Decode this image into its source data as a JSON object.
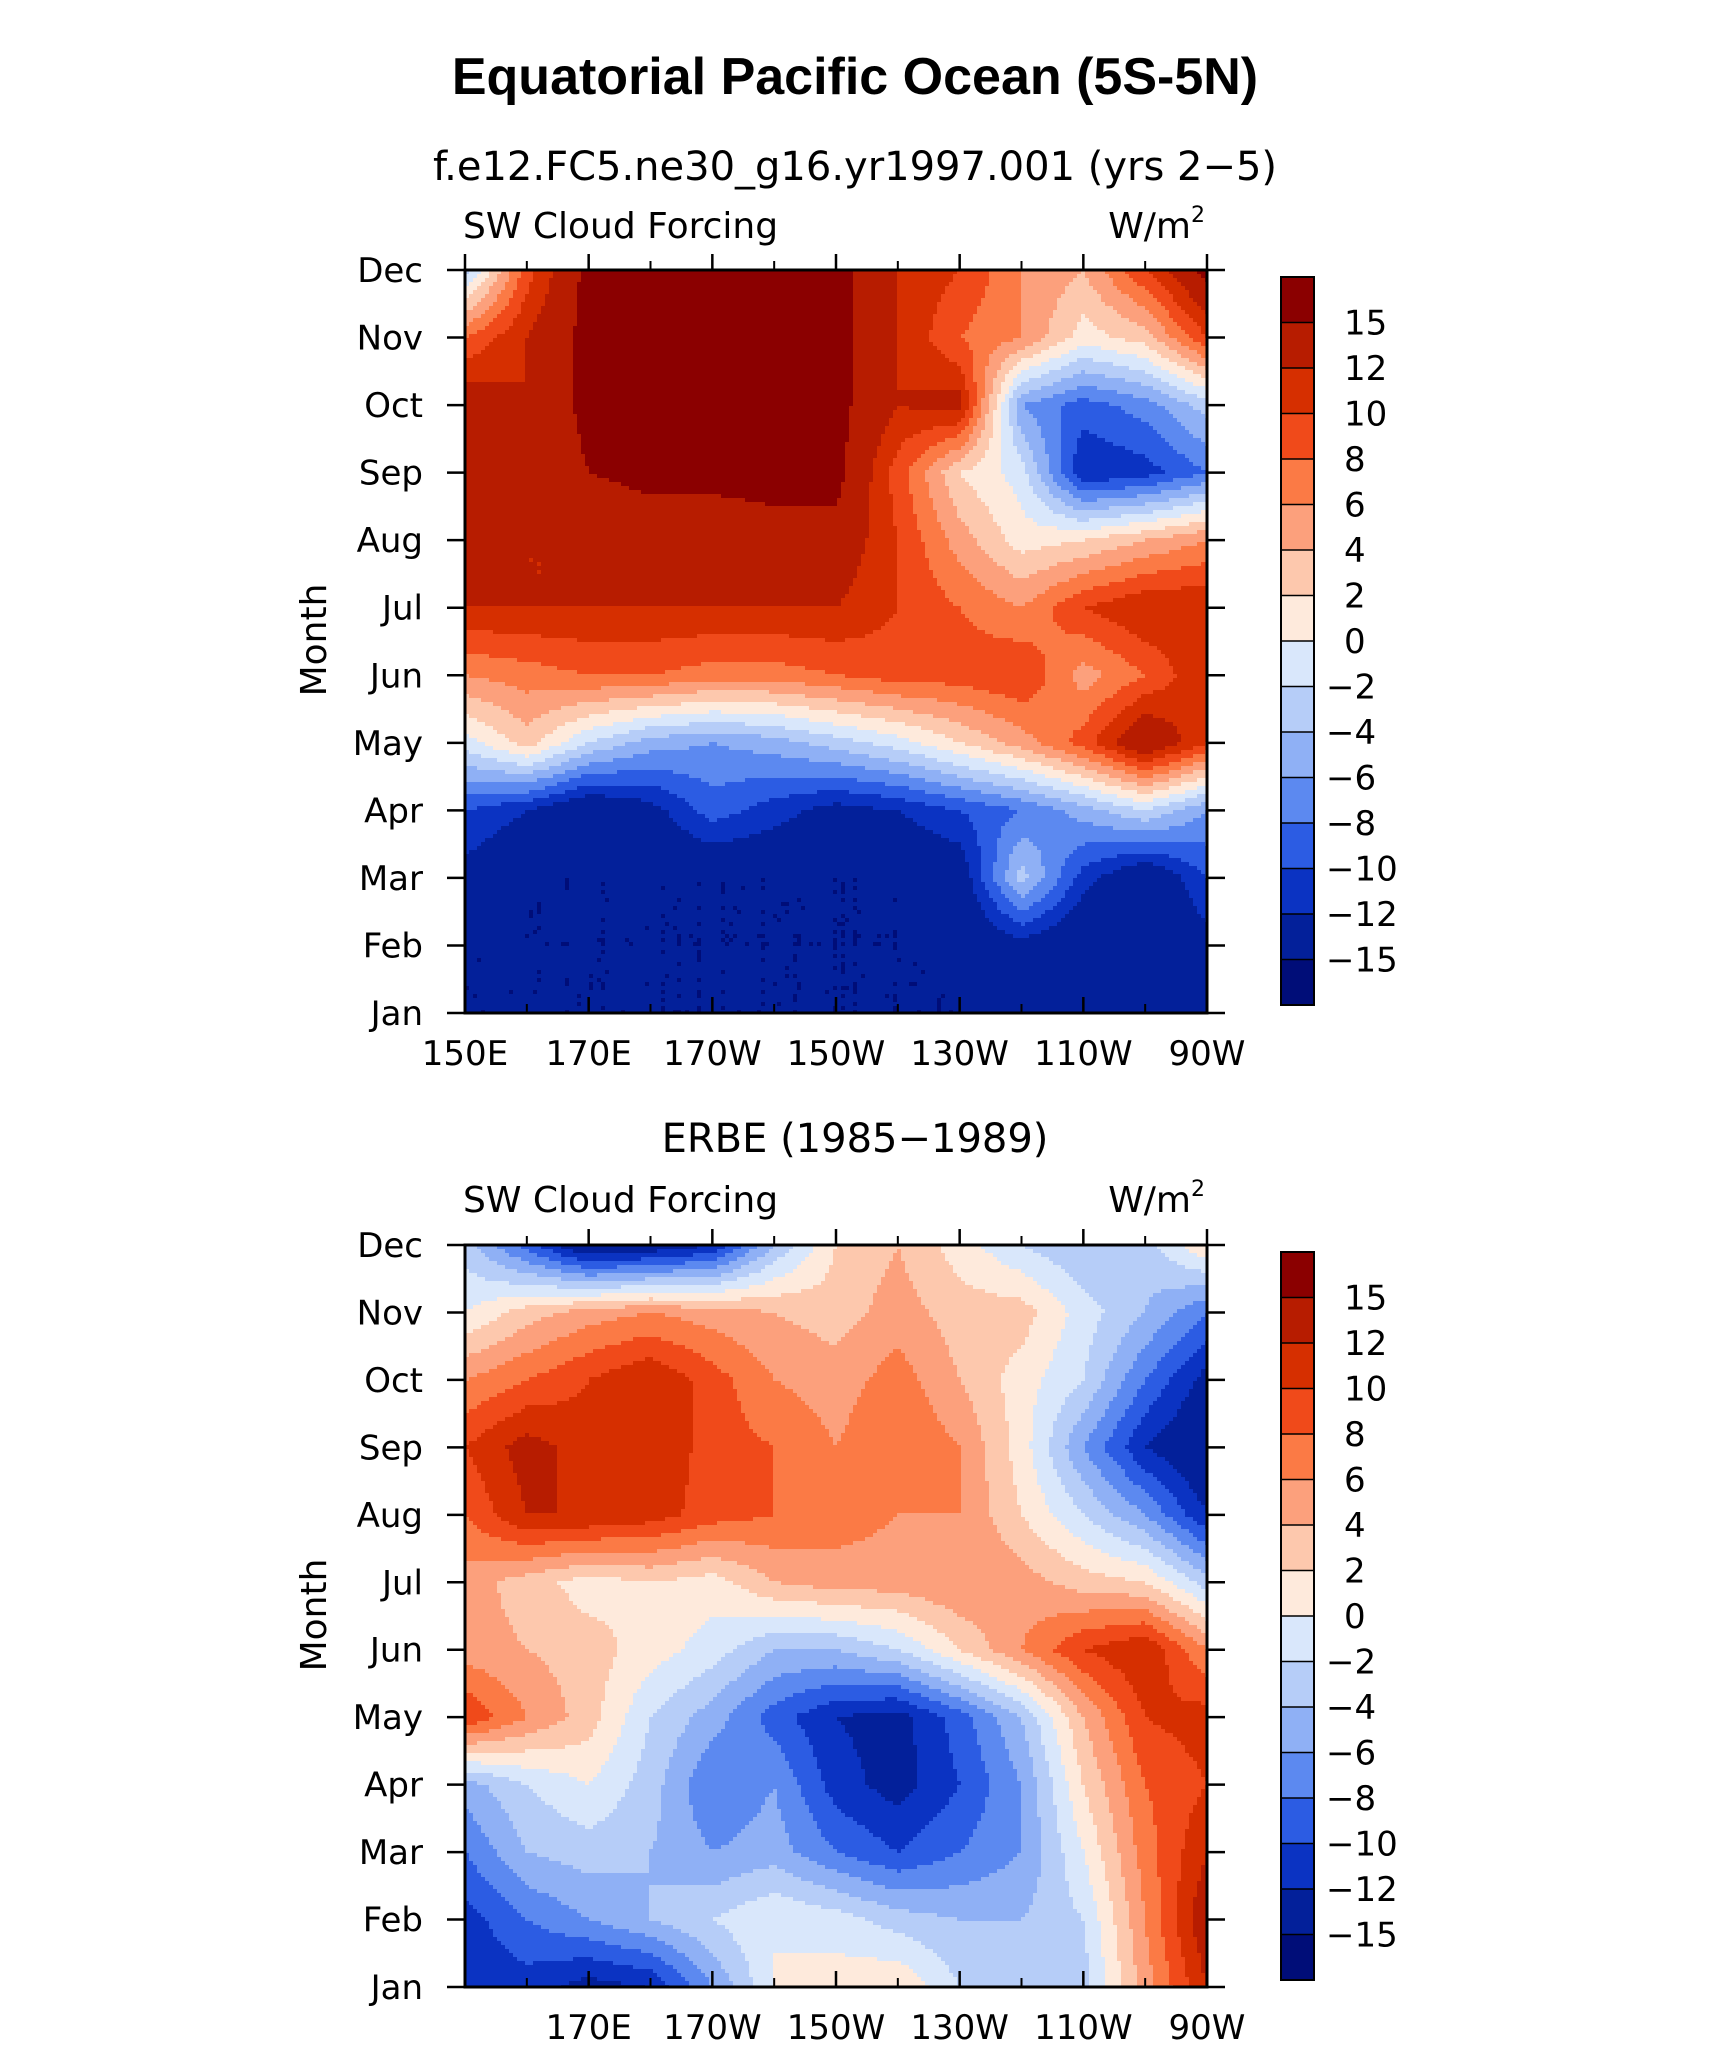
{
  "figure": {
    "title": "Equatorial Pacific Ocean (5S-5N)",
    "units_superscript": "2"
  },
  "colorscale": {
    "levels": [
      "15",
      "12",
      "10",
      "8",
      "6",
      "4",
      "2",
      "0",
      "−2",
      "−4",
      "−6",
      "−8",
      "−10",
      "−12",
      "−15"
    ],
    "level_values": [
      15,
      12,
      10,
      8,
      6,
      4,
      2,
      0,
      -2,
      -4,
      -6,
      -8,
      -10,
      -12,
      -15
    ],
    "colors": [
      "#8b0000",
      "#b71c00",
      "#d62f00",
      "#f04a1a",
      "#fb7a45",
      "#fca07c",
      "#fdc8ad",
      "#feeadc",
      "#d9e7fb",
      "#b6cdf8",
      "#8fb0f5",
      "#5c89f0",
      "#2c5ce3",
      "#0b33c2",
      "#03209a",
      "#000d78"
    ]
  },
  "chart_data": [
    {
      "type": "heatmap",
      "title": "f.e12.FC5.ne30_g16.yr1997.001 (yrs 2−5)",
      "left_label": "SW Cloud Forcing",
      "right_label": "W/m",
      "ylabel": "Month",
      "x_tick_labels": [
        "150E",
        "170E",
        "170W",
        "150W",
        "130W",
        "110W",
        "90W"
      ],
      "x_tick_positions": [
        150,
        170,
        190,
        210,
        230,
        250,
        270
      ],
      "y_tick_labels": [
        "Jan",
        "Feb",
        "Mar",
        "Apr",
        "May",
        "Jun",
        "Jul",
        "Aug",
        "Sep",
        "Oct",
        "Nov",
        "Dec"
      ],
      "xlim": [
        150,
        270
      ],
      "ylim": [
        1,
        12
      ],
      "longitudes": [
        150,
        160,
        170,
        180,
        190,
        200,
        210,
        220,
        230,
        240,
        250,
        260,
        270
      ],
      "z": [
        [
          -15,
          -15,
          -15,
          -15,
          -15,
          -15,
          -15,
          -15,
          -15,
          -14,
          -15,
          -14,
          -13
        ],
        [
          -15,
          -15,
          -15,
          -15,
          -15,
          -15,
          -15,
          -15,
          -15,
          -13,
          -15,
          -15,
          -13
        ],
        [
          -13,
          -15,
          -15,
          -15,
          -15,
          -15,
          -15,
          -15,
          -14,
          -3,
          -11,
          -15,
          -10
        ],
        [
          -10,
          -12,
          -15,
          -13,
          -9,
          -11,
          -13,
          -12,
          -10,
          -8,
          -5,
          -2,
          -6
        ],
        [
          -1,
          3,
          -2,
          -5,
          -6,
          -5,
          -3,
          -1,
          2,
          5,
          9,
          15,
          10
        ],
        [
          6,
          7,
          8,
          8,
          7,
          7,
          8,
          9,
          9,
          10,
          5,
          8,
          12
        ],
        [
          12,
          12,
          12,
          12,
          12,
          12,
          12,
          10,
          8,
          6,
          10,
          12,
          12
        ],
        [
          14,
          12,
          12,
          13,
          13,
          14,
          14,
          10,
          5,
          1,
          2,
          4,
          6
        ],
        [
          13,
          12,
          15,
          16,
          16,
          16,
          16,
          9,
          2,
          -1,
          -12,
          -11,
          -8
        ],
        [
          14,
          12,
          16,
          16,
          16,
          16,
          16,
          12,
          13,
          -6,
          -9,
          -7,
          -3
        ],
        [
          8,
          12,
          16,
          16,
          16,
          16,
          16,
          12,
          8,
          6,
          1,
          3,
          10
        ],
        [
          -3,
          9,
          16,
          16,
          16,
          16,
          16,
          12,
          10,
          6,
          4,
          10,
          16
        ]
      ]
    },
    {
      "type": "heatmap",
      "title": "ERBE (1985−1989)",
      "left_label": "SW Cloud Forcing",
      "right_label": "W/m",
      "ylabel": "Month",
      "x_tick_labels": [
        "170E",
        "170W",
        "150W",
        "130W",
        "110W",
        "90W"
      ],
      "x_tick_positions": [
        170,
        190,
        210,
        230,
        250,
        270
      ],
      "y_tick_labels": [
        "Jan",
        "Feb",
        "Mar",
        "Apr",
        "May",
        "Jun",
        "Jul",
        "Aug",
        "Sep",
        "Oct",
        "Nov",
        "Dec"
      ],
      "xlim": [
        150,
        270
      ],
      "ylim": [
        1,
        12
      ],
      "longitudes": [
        150,
        160,
        170,
        180,
        190,
        200,
        210,
        220,
        230,
        240,
        250,
        260,
        270
      ],
      "z": [
        [
          -12,
          -11,
          -13,
          -12,
          -6,
          0,
          1,
          2,
          -2,
          -2,
          -3,
          5,
          12
        ],
        [
          -11,
          -8,
          -6,
          -4,
          -2,
          0,
          -1,
          -3,
          -4,
          -4,
          -2,
          6,
          14
        ],
        [
          -8,
          -4,
          -3,
          -4,
          -6,
          -5,
          -8,
          -10,
          -8,
          -6,
          0,
          7,
          12
        ],
        [
          -5,
          -2,
          0,
          -3,
          -8,
          -6,
          -11,
          -13,
          -10,
          -6,
          2,
          8,
          10
        ],
        [
          10,
          6,
          3,
          -2,
          -5,
          -9,
          -12,
          -13,
          -9,
          -4,
          4,
          10,
          11
        ],
        [
          5,
          4,
          3,
          1,
          -1,
          -4,
          -4,
          -2,
          2,
          6,
          10,
          12,
          6
        ],
        [
          5,
          3,
          1,
          2,
          1,
          4,
          5,
          5,
          6,
          5,
          3,
          2,
          -3
        ],
        [
          8,
          12,
          12,
          11,
          9,
          8,
          7,
          6,
          6,
          2,
          -2,
          -6,
          -12
        ],
        [
          10,
          13,
          11,
          12,
          9,
          8,
          6,
          8,
          6,
          1,
          -6,
          -12,
          -15
        ],
        [
          6,
          8,
          10,
          12,
          9,
          6,
          5,
          7,
          4,
          1,
          -2,
          -8,
          -13
        ],
        [
          0,
          3,
          5,
          6,
          5,
          4,
          3,
          5,
          3,
          3,
          -1,
          -4,
          -8
        ],
        [
          -3,
          -9,
          -15,
          -14,
          -12,
          -4,
          2,
          4,
          1,
          -2,
          -4,
          -3,
          2
        ]
      ]
    }
  ]
}
